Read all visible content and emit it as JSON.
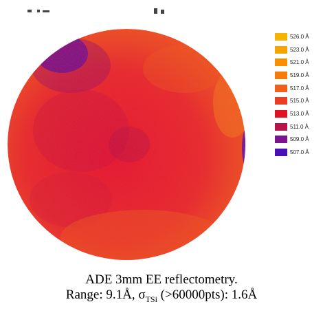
{
  "chart_data": {
    "type": "heatmap",
    "title": "",
    "legend_position": "right",
    "colorscale": [
      {
        "label": "526.0 Å",
        "value": 526.0,
        "color": "#f4b400"
      },
      {
        "label": "523.0 Å",
        "value": 523.0,
        "color": "#f7a400"
      },
      {
        "label": "521.0 Å",
        "value": 521.0,
        "color": "#f99000"
      },
      {
        "label": "519.0 Å",
        "value": 519.0,
        "color": "#f57b0a"
      },
      {
        "label": "517.0 Å",
        "value": 517.0,
        "color": "#f0601a"
      },
      {
        "label": "515.0 Å",
        "value": 515.0,
        "color": "#ea3d22"
      },
      {
        "label": "513.0 Å",
        "value": 513.0,
        "color": "#e01224"
      },
      {
        "label": "511.0 Å",
        "value": 511.0,
        "color": "#b8144a"
      },
      {
        "label": "509.0 Å",
        "value": 509.0,
        "color": "#7a1590"
      },
      {
        "label": "507.0 Å",
        "value": 507.0,
        "color": "#4a10b8"
      }
    ]
  },
  "caption": {
    "line1": "ADE 3mm EE reflectometry.",
    "line2_prefix": "Range: 9.1Å, σ",
    "line2_sub": "TSi",
    "line2_suffix": " (>60000pts): 1.6Å"
  }
}
